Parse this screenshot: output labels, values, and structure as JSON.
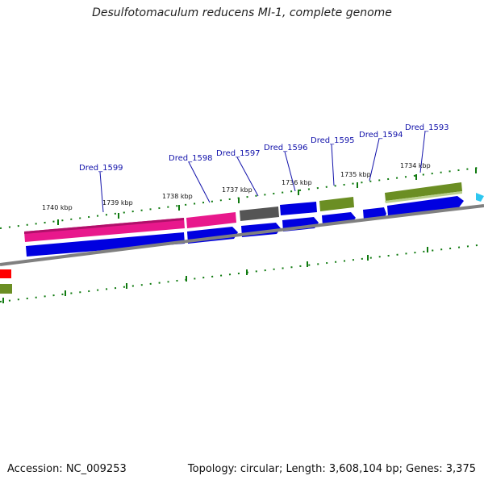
{
  "header": {
    "title": "Desulfotomaculum reducens MI-1, complete genome"
  },
  "footer": {
    "accession": "Accession: NC_009253",
    "summary": "Topology: circular; Length: 3,608,104 bp; Genes: 3,375"
  },
  "colors": {
    "background": "#ffffff",
    "backbone": "#808080",
    "cds_blue": "#0000e0",
    "gene_magenta": "#e8188c",
    "gene_gray": "#555555",
    "gene_olive": "#6b8e23",
    "gene_red": "#ff0000",
    "gene_cyan": "#2ec7f0",
    "tick_green": "#0f7a0f",
    "label_blue": "#1111aa"
  },
  "scale": {
    "labels": [
      "1740 kbp",
      "1739 kbp",
      "1738 kbp",
      "1737 kbp",
      "1736 kbp",
      "1735 kbp",
      "1734 kbp"
    ]
  },
  "gene_labels": [
    "Dred_1599",
    "Dred_1598",
    "Dred_1597",
    "Dred_1596",
    "Dred_1595",
    "Dred_1594",
    "Dred_1593"
  ]
}
